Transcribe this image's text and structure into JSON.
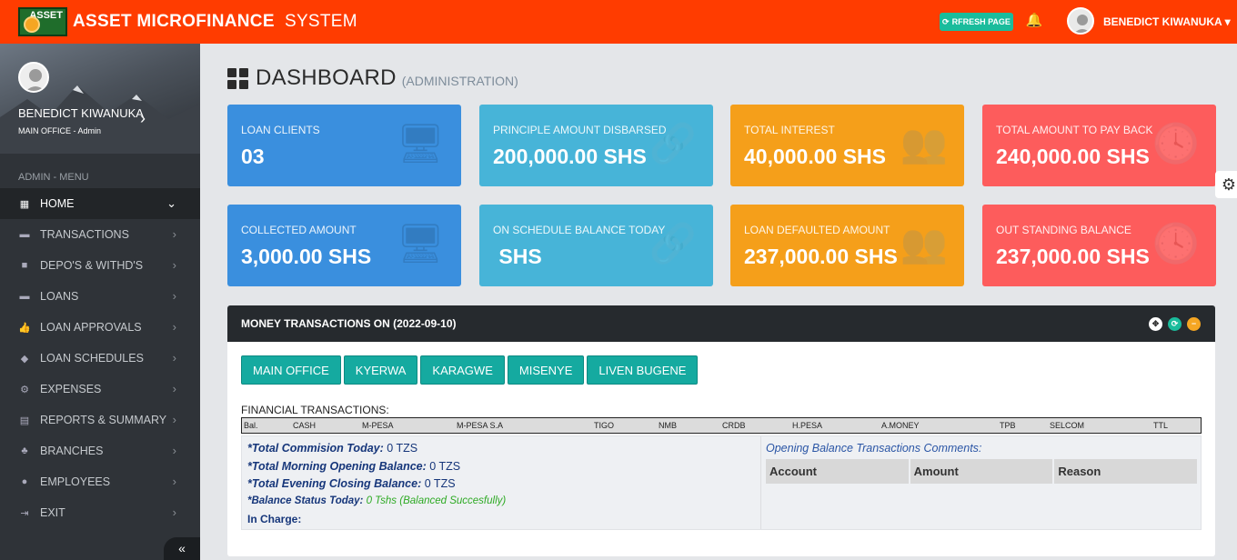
{
  "app": {
    "logo_text": "ASSET",
    "brand_main": "ASSET MICROFINANCE",
    "brand_sub": "SYSTEM"
  },
  "topbar": {
    "refresh_label": "RFRESH PAGE",
    "user_name": "BENEDICT KIWANUKA"
  },
  "sidebar": {
    "profile": {
      "name": "BENEDICT KIWANUKA",
      "role": "MAIN OFFICE - Admin"
    },
    "menu_heading": "ADMIN - MENU",
    "items": [
      {
        "label": "HOME",
        "icon": "windows-icon"
      },
      {
        "label": "TRANSACTIONS",
        "icon": "money-icon"
      },
      {
        "label": "DEPO'S & WITHD'S",
        "icon": "briefcase-icon"
      },
      {
        "label": "LOANS",
        "icon": "money-icon"
      },
      {
        "label": "LOAN APPROVALS",
        "icon": "thumbs-up-icon"
      },
      {
        "label": "LOAN SCHEDULES",
        "icon": "cube-icon"
      },
      {
        "label": "EXPENSES",
        "icon": "cog-icon"
      },
      {
        "label": "REPORTS & SUMMARY",
        "icon": "file-icon"
      },
      {
        "label": "BRANCHES",
        "icon": "bell-icon"
      },
      {
        "label": "EMPLOYEES",
        "icon": "users-icon"
      },
      {
        "label": "EXIT",
        "icon": "sign-out-icon"
      }
    ]
  },
  "page": {
    "title": "DASHBOARD",
    "subtitle": "(ADMINISTRATION)"
  },
  "cards": [
    {
      "label": "LOAN CLIENTS",
      "value": "03",
      "color": "#3a8fde",
      "icon": "desktop-icon"
    },
    {
      "label": "PRINCIPLE AMOUNT DISBARSED",
      "value": "200,000.00 SHS",
      "color": "#47b4d8",
      "icon": "link-icon"
    },
    {
      "label": "TOTAL INTEREST",
      "value": "40,000.00 SHS",
      "color": "#f59f1a",
      "icon": "users-icon"
    },
    {
      "label": "TOTAL AMOUNT TO PAY BACK",
      "value": "240,000.00 SHS",
      "color": "#fd5c5c",
      "icon": "clock-icon"
    },
    {
      "label": "COLLECTED AMOUNT",
      "value": "3,000.00 SHS",
      "color": "#3a8fde",
      "icon": "desktop-icon"
    },
    {
      "label": "ON SCHEDULE BALANCE TODAY",
      "value": " SHS",
      "color": "#47b4d8",
      "icon": "link-icon"
    },
    {
      "label": "LOAN DEFAULTED AMOUNT",
      "value": "237,000.00 SHS",
      "color": "#f59f1a",
      "icon": "users-icon"
    },
    {
      "label": "OUT STANDING BALANCE",
      "value": "237,000.00 SHS",
      "color": "#fd5c5c",
      "icon": "clock-icon"
    }
  ],
  "panel": {
    "title": "MONEY TRANSACTIONS ON (2022-09-10)",
    "branches": [
      "MAIN OFFICE",
      "KYERWA",
      "KARAGWE",
      "MISENYE",
      "LIVEN BUGENE"
    ],
    "financial_label": "FINANCIAL TRANSACTIONS:",
    "columns": [
      "Bal.",
      "CASH",
      "M-PESA",
      "M-PESA S.A",
      "TIGO",
      "NMB",
      "CRDB",
      "H.PESA",
      "A.MONEY",
      "TPB",
      "SELCOM",
      "TTL"
    ],
    "summary": {
      "commission_label": "*Total Commision Today:",
      "commission_value": "0 TZS",
      "opening_label": "*Total Morning Opening Balance:",
      "opening_value": "0 TZS",
      "closing_label": "*Total Evening Closing Balance:",
      "closing_value": "0 TZS",
      "status_label": "*Balance Status Today:",
      "status_value": "0 Tshs (Balanced Succesfully)",
      "in_charge_label": "In Charge:"
    },
    "comments": {
      "title": "Opening Balance Transactions Comments:",
      "headers": [
        "Account",
        "Amount",
        "Reason"
      ]
    }
  }
}
